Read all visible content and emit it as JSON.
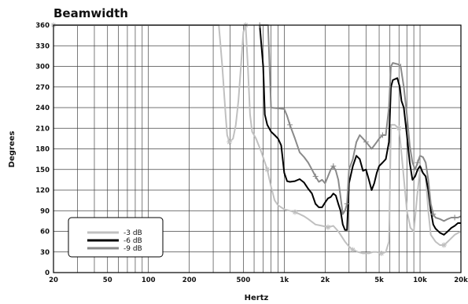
{
  "chart_data": {
    "type": "line",
    "title": "Beamwidth",
    "xlabel": "Hertz",
    "ylabel": "Degrees",
    "x_scale": "log",
    "xlim": [
      20,
      20000
    ],
    "ylim": [
      0,
      360
    ],
    "grid": true,
    "legend_position": "bottom-left",
    "x_ticks": [
      20,
      50,
      100,
      200,
      500,
      1000,
      2000,
      5000,
      10000,
      20000
    ],
    "x_tick_labels": [
      "20",
      "50",
      "100",
      "200",
      "500",
      "1k",
      "2k",
      "5k",
      "10k",
      "20k"
    ],
    "y_ticks": [
      0,
      30,
      60,
      90,
      120,
      150,
      180,
      210,
      240,
      270,
      300,
      330,
      360
    ],
    "y_tick_labels": [
      "0",
      "30",
      "60",
      "90",
      "120",
      "150",
      "180",
      "210",
      "240",
      "270",
      "300",
      "330",
      "360"
    ],
    "series": [
      {
        "name": "-3 dB",
        "color": "#c0c0c0",
        "points": [
          [
            20,
            360
          ],
          [
            280,
            360
          ],
          [
            330,
            360
          ],
          [
            350,
            300
          ],
          [
            370,
            230
          ],
          [
            380,
            200
          ],
          [
            395,
            190
          ],
          [
            420,
            195
          ],
          [
            440,
            215
          ],
          [
            460,
            250
          ],
          [
            480,
            300
          ],
          [
            500,
            350
          ],
          [
            520,
            360
          ],
          [
            540,
            300
          ],
          [
            560,
            230
          ],
          [
            580,
            205
          ],
          [
            620,
            195
          ],
          [
            680,
            175
          ],
          [
            750,
            150
          ],
          [
            800,
            125
          ],
          [
            850,
            105
          ],
          [
            900,
            98
          ],
          [
            1000,
            92
          ],
          [
            1100,
            90
          ],
          [
            1200,
            88
          ],
          [
            1300,
            85
          ],
          [
            1400,
            82
          ],
          [
            1500,
            78
          ],
          [
            1700,
            70
          ],
          [
            1900,
            68
          ],
          [
            2100,
            66
          ],
          [
            2300,
            68
          ],
          [
            2500,
            60
          ],
          [
            2600,
            55
          ],
          [
            2800,
            45
          ],
          [
            3000,
            38
          ],
          [
            3200,
            33
          ],
          [
            3500,
            30
          ],
          [
            3800,
            28
          ],
          [
            4200,
            28
          ],
          [
            4500,
            30
          ],
          [
            4800,
            30
          ],
          [
            5200,
            28
          ],
          [
            5600,
            30
          ],
          [
            5900,
            45
          ],
          [
            6000,
            120
          ],
          [
            6100,
            215
          ],
          [
            6500,
            215
          ],
          [
            7000,
            210
          ],
          [
            7500,
            150
          ],
          [
            8000,
            90
          ],
          [
            8500,
            65
          ],
          [
            9000,
            60
          ],
          [
            9500,
            110
          ],
          [
            10000,
            150
          ],
          [
            11000,
            140
          ],
          [
            11500,
            90
          ],
          [
            12000,
            55
          ],
          [
            13000,
            45
          ],
          [
            14000,
            40
          ],
          [
            15000,
            40
          ],
          [
            16000,
            45
          ],
          [
            18000,
            55
          ],
          [
            20000,
            60
          ]
        ]
      },
      {
        "name": "-6 dB",
        "color": "#000000",
        "points": [
          [
            660,
            360
          ],
          [
            700,
            300
          ],
          [
            720,
            230
          ],
          [
            750,
            215
          ],
          [
            800,
            205
          ],
          [
            850,
            200
          ],
          [
            900,
            195
          ],
          [
            950,
            185
          ],
          [
            1000,
            145
          ],
          [
            1050,
            133
          ],
          [
            1100,
            132
          ],
          [
            1200,
            133
          ],
          [
            1300,
            136
          ],
          [
            1400,
            131
          ],
          [
            1500,
            122
          ],
          [
            1600,
            115
          ],
          [
            1700,
            100
          ],
          [
            1800,
            95
          ],
          [
            1900,
            95
          ],
          [
            2000,
            102
          ],
          [
            2100,
            108
          ],
          [
            2200,
            110
          ],
          [
            2300,
            115
          ],
          [
            2400,
            112
          ],
          [
            2500,
            100
          ],
          [
            2600,
            90
          ],
          [
            2700,
            70
          ],
          [
            2800,
            62
          ],
          [
            2900,
            62
          ],
          [
            3000,
            130
          ],
          [
            3200,
            155
          ],
          [
            3400,
            170
          ],
          [
            3600,
            165
          ],
          [
            3800,
            148
          ],
          [
            4000,
            150
          ],
          [
            4200,
            135
          ],
          [
            4400,
            120
          ],
          [
            4600,
            130
          ],
          [
            4800,
            145
          ],
          [
            5000,
            155
          ],
          [
            5300,
            160
          ],
          [
            5600,
            165
          ],
          [
            5900,
            190
          ],
          [
            6100,
            270
          ],
          [
            6300,
            280
          ],
          [
            6800,
            283
          ],
          [
            7100,
            270
          ],
          [
            7300,
            250
          ],
          [
            7600,
            240
          ],
          [
            8000,
            200
          ],
          [
            8400,
            160
          ],
          [
            8800,
            135
          ],
          [
            9200,
            140
          ],
          [
            9600,
            150
          ],
          [
            10000,
            155
          ],
          [
            10500,
            145
          ],
          [
            11000,
            140
          ],
          [
            11500,
            120
          ],
          [
            12000,
            90
          ],
          [
            12500,
            70
          ],
          [
            13000,
            64
          ],
          [
            14000,
            58
          ],
          [
            15000,
            55
          ],
          [
            16000,
            60
          ],
          [
            17000,
            65
          ],
          [
            18000,
            68
          ],
          [
            19000,
            72
          ],
          [
            20000,
            72
          ]
        ]
      },
      {
        "name": "-9 dB",
        "color": "#8a8a8a",
        "points": [
          [
            660,
            360
          ],
          [
            760,
            360
          ],
          [
            780,
            300
          ],
          [
            800,
            240
          ],
          [
            1000,
            238
          ],
          [
            1050,
            228
          ],
          [
            1100,
            215
          ],
          [
            1200,
            195
          ],
          [
            1300,
            175
          ],
          [
            1400,
            168
          ],
          [
            1500,
            160
          ],
          [
            1600,
            150
          ],
          [
            1700,
            140
          ],
          [
            1800,
            132
          ],
          [
            1900,
            135
          ],
          [
            2000,
            130
          ],
          [
            2100,
            140
          ],
          [
            2200,
            150
          ],
          [
            2300,
            155
          ],
          [
            2400,
            148
          ],
          [
            2500,
            135
          ],
          [
            2600,
            110
          ],
          [
            2700,
            85
          ],
          [
            2800,
            90
          ],
          [
            2900,
            100
          ],
          [
            3000,
            150
          ],
          [
            3200,
            165
          ],
          [
            3400,
            190
          ],
          [
            3600,
            200
          ],
          [
            3800,
            195
          ],
          [
            4000,
            190
          ],
          [
            4200,
            185
          ],
          [
            4400,
            180
          ],
          [
            4600,
            185
          ],
          [
            4800,
            190
          ],
          [
            5000,
            195
          ],
          [
            5300,
            200
          ],
          [
            5600,
            200
          ],
          [
            5900,
            240
          ],
          [
            6100,
            300
          ],
          [
            6300,
            305
          ],
          [
            6900,
            303
          ],
          [
            7200,
            300
          ],
          [
            7600,
            270
          ],
          [
            8000,
            230
          ],
          [
            8400,
            185
          ],
          [
            8800,
            160
          ],
          [
            9200,
            150
          ],
          [
            9600,
            160
          ],
          [
            10000,
            170
          ],
          [
            10500,
            168
          ],
          [
            11000,
            160
          ],
          [
            11500,
            135
          ],
          [
            12000,
            100
          ],
          [
            12500,
            85
          ],
          [
            13000,
            80
          ],
          [
            14000,
            78
          ],
          [
            15000,
            75
          ],
          [
            16000,
            78
          ],
          [
            17000,
            80
          ],
          [
            18000,
            80
          ],
          [
            19000,
            80
          ],
          [
            20000,
            82
          ]
        ]
      }
    ]
  }
}
